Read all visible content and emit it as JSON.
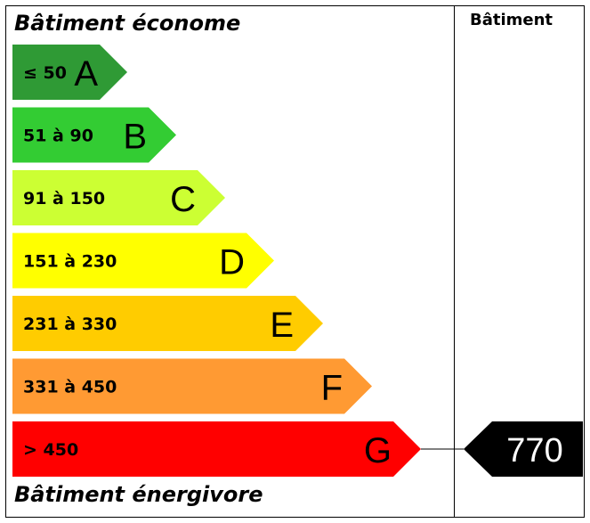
{
  "chart_data": {
    "type": "energy-rating",
    "top_label": "Bâtiment économe",
    "bottom_label": "Bâtiment énergivore",
    "column_header": "Bâtiment",
    "classes": [
      {
        "letter": "A",
        "range": "≤ 50",
        "color": "#2f9a35",
        "text_color": "#000000"
      },
      {
        "letter": "B",
        "range": "51 à 90",
        "color": "#33cc33",
        "text_color": "#000000"
      },
      {
        "letter": "C",
        "range": "91 à 150",
        "color": "#ccff33",
        "text_color": "#000000"
      },
      {
        "letter": "D",
        "range": "151 à 230",
        "color": "#ffff00",
        "text_color": "#000000"
      },
      {
        "letter": "E",
        "range": "231 à 330",
        "color": "#ffcc00",
        "text_color": "#000000"
      },
      {
        "letter": "F",
        "range": "331 à 450",
        "color": "#ff9a33",
        "text_color": "#000000"
      },
      {
        "letter": "G",
        "range": "> 450",
        "color": "#ff0000",
        "text_color": "#000000"
      }
    ],
    "current": {
      "value": "770",
      "class": "G",
      "marker_color": "#000000",
      "text_color": "#ffffff"
    }
  }
}
